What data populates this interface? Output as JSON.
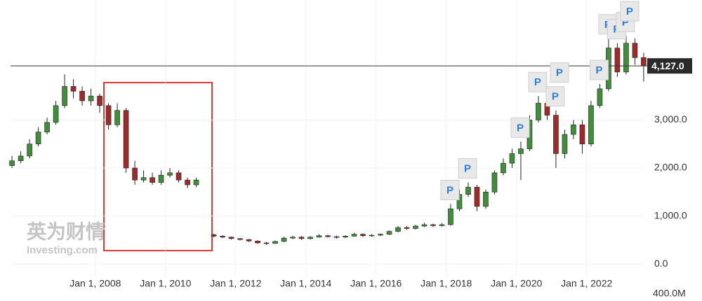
{
  "chart_data": {
    "type": "candlestick",
    "watermark": "英为财情",
    "watermark_sub": "Investing.com",
    "volume_axis_label": "400.0M",
    "up_color": "#3f8f3a",
    "down_color": "#9e2a2a",
    "grid": true,
    "xlim": [
      "2005-08",
      "2023-09"
    ],
    "xticks": [
      {
        "value": "2008-01",
        "label": "Jan 1, 2008"
      },
      {
        "value": "2010-01",
        "label": "Jan 1, 2010"
      },
      {
        "value": "2012-01",
        "label": "Jan 1, 2012"
      },
      {
        "value": "2014-01",
        "label": "Jan 1, 2014"
      },
      {
        "value": "2016-01",
        "label": "Jan 1, 2016"
      },
      {
        "value": "2018-01",
        "label": "Jan 1, 2018"
      },
      {
        "value": "2020-01",
        "label": "Jan 1, 2020"
      },
      {
        "value": "2022-01",
        "label": "Jan 1, 2022"
      }
    ],
    "ylim": [
      -260,
      5500
    ],
    "yticks": [
      {
        "value": 0,
        "label": "0.0"
      },
      {
        "value": 1000,
        "label": "1,000.0"
      },
      {
        "value": 2000,
        "label": "2,000.0"
      },
      {
        "value": 3000,
        "label": "3,000.0"
      }
    ],
    "last_price": {
      "value": 4127,
      "label": "4,127.0"
    },
    "x": [
      "2005-07",
      "2005-10",
      "2006-01",
      "2006-04",
      "2006-07",
      "2006-10",
      "2007-01",
      "2007-04",
      "2007-07",
      "2007-10",
      "2008-01",
      "2008-04",
      "2008-07",
      "2008-10",
      "2009-01",
      "2009-04",
      "2009-07",
      "2009-10",
      "2010-01",
      "2010-04",
      "2010-07",
      "2010-10",
      "2011-04",
      "2011-07",
      "2011-10",
      "2012-01",
      "2012-04",
      "2012-07",
      "2012-10",
      "2013-01",
      "2013-04",
      "2013-07",
      "2013-10",
      "2014-01",
      "2014-04",
      "2014-07",
      "2014-10",
      "2015-01",
      "2015-04",
      "2015-07",
      "2015-10",
      "2016-01",
      "2016-04",
      "2016-07",
      "2016-10",
      "2017-01",
      "2017-04",
      "2017-07",
      "2017-10",
      "2018-01",
      "2018-04",
      "2018-07",
      "2018-10",
      "2019-01",
      "2019-04",
      "2019-07",
      "2019-10",
      "2020-01",
      "2020-04",
      "2020-07",
      "2020-10",
      "2021-01",
      "2021-04",
      "2021-07",
      "2021-10",
      "2022-01",
      "2022-04",
      "2022-07",
      "2022-10",
      "2023-01",
      "2023-04",
      "2023-07"
    ],
    "ohlc": [
      [
        2050,
        2250,
        2000,
        2150
      ],
      [
        2150,
        2350,
        2100,
        2250
      ],
      [
        2250,
        2600,
        2200,
        2500
      ],
      [
        2500,
        2850,
        2450,
        2750
      ],
      [
        2750,
        3050,
        2700,
        2950
      ],
      [
        2950,
        3400,
        2900,
        3300
      ],
      [
        3300,
        3950,
        3250,
        3700
      ],
      [
        3700,
        3850,
        3450,
        3600
      ],
      [
        3600,
        3700,
        3300,
        3400
      ],
      [
        3400,
        3650,
        3300,
        3500
      ],
      [
        3500,
        3550,
        3150,
        3300
      ],
      [
        3300,
        3350,
        2800,
        2900
      ],
      [
        2900,
        3350,
        2850,
        3200
      ],
      [
        3200,
        3250,
        1900,
        2000
      ],
      [
        2000,
        2150,
        1650,
        1750
      ],
      [
        1750,
        1950,
        1700,
        1800
      ],
      [
        1800,
        1900,
        1650,
        1700
      ],
      [
        1700,
        1950,
        1650,
        1850
      ],
      [
        1850,
        2000,
        1800,
        1900
      ],
      [
        1900,
        1950,
        1700,
        1750
      ],
      [
        1750,
        1800,
        1580,
        1650
      ],
      [
        1650,
        1800,
        1600,
        1750
      ],
      [
        610,
        630,
        560,
        580
      ],
      [
        580,
        600,
        540,
        560
      ],
      [
        560,
        570,
        510,
        530
      ],
      [
        530,
        540,
        490,
        510
      ],
      [
        510,
        520,
        460,
        480
      ],
      [
        480,
        490,
        420,
        440
      ],
      [
        440,
        460,
        400,
        430
      ],
      [
        430,
        490,
        420,
        470
      ],
      [
        470,
        570,
        460,
        540
      ],
      [
        540,
        590,
        520,
        560
      ],
      [
        560,
        580,
        500,
        530
      ],
      [
        530,
        580,
        510,
        560
      ],
      [
        560,
        620,
        550,
        590
      ],
      [
        590,
        610,
        550,
        570
      ],
      [
        570,
        590,
        530,
        560
      ],
      [
        560,
        600,
        540,
        580
      ],
      [
        580,
        650,
        570,
        620
      ],
      [
        620,
        640,
        560,
        590
      ],
      [
        590,
        620,
        570,
        600
      ],
      [
        600,
        640,
        580,
        620
      ],
      [
        620,
        700,
        600,
        680
      ],
      [
        680,
        790,
        660,
        760
      ],
      [
        760,
        790,
        710,
        740
      ],
      [
        740,
        820,
        720,
        790
      ],
      [
        790,
        860,
        770,
        820
      ],
      [
        820,
        840,
        770,
        800
      ],
      [
        800,
        850,
        780,
        820
      ],
      [
        820,
        1250,
        800,
        1150
      ],
      [
        1150,
        1550,
        1100,
        1450
      ],
      [
        1450,
        1700,
        1400,
        1600
      ],
      [
        1600,
        1650,
        1100,
        1200
      ],
      [
        1200,
        1550,
        1150,
        1500
      ],
      [
        1500,
        1950,
        1450,
        1900
      ],
      [
        1900,
        2200,
        1850,
        2100
      ],
      [
        2100,
        2400,
        2000,
        2300
      ],
      [
        2300,
        2550,
        1750,
        2400
      ],
      [
        2400,
        3100,
        2350,
        3000
      ],
      [
        3000,
        3500,
        2950,
        3350
      ],
      [
        3350,
        3550,
        3000,
        3100
      ],
      [
        3100,
        3200,
        2000,
        2300
      ],
      [
        2300,
        2800,
        2200,
        2700
      ],
      [
        2700,
        3000,
        2600,
        2900
      ],
      [
        2900,
        3000,
        2300,
        2500
      ],
      [
        2500,
        3400,
        2450,
        3300
      ],
      [
        3300,
        3750,
        3250,
        3650
      ],
      [
        3650,
        4700,
        3600,
        4500
      ],
      [
        4500,
        4600,
        3900,
        4000
      ],
      [
        4000,
        4750,
        3950,
        4600
      ],
      [
        4600,
        4700,
        4150,
        4300
      ],
      [
        4300,
        4400,
        3800,
        4127
      ]
    ],
    "markers": [
      {
        "x": "2018-01",
        "label": "P"
      },
      {
        "x": "2018-07",
        "label": "P"
      },
      {
        "x": "2020-01",
        "label": "P"
      },
      {
        "x": "2020-07",
        "label": "P"
      },
      {
        "x": "2021-01",
        "label": "P"
      },
      {
        "x": "2021-01",
        "label": "P"
      },
      {
        "x": "2022-04",
        "label": "P"
      },
      {
        "x": "2022-07",
        "label": "P"
      },
      {
        "x": "2022-10",
        "label": "P"
      },
      {
        "x": "2023-01",
        "label": "P"
      },
      {
        "x": "2023-01",
        "label": "P"
      }
    ]
  }
}
